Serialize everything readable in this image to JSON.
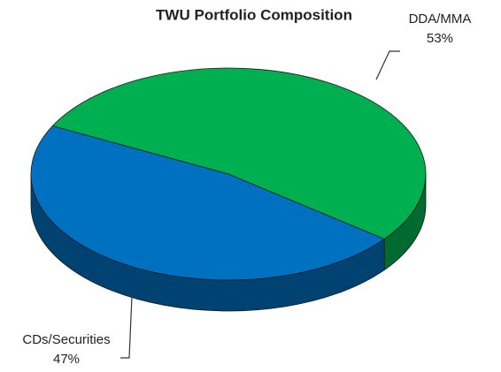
{
  "chart_data": {
    "type": "pie3d",
    "title": "TWU Portfolio Composition",
    "categories": [
      "DDA/MMA",
      "CDs/Securities"
    ],
    "values": [
      53,
      47
    ],
    "value_labels": [
      "53%",
      "47%"
    ],
    "colors": [
      "#00b050",
      "#0070c0"
    ]
  }
}
